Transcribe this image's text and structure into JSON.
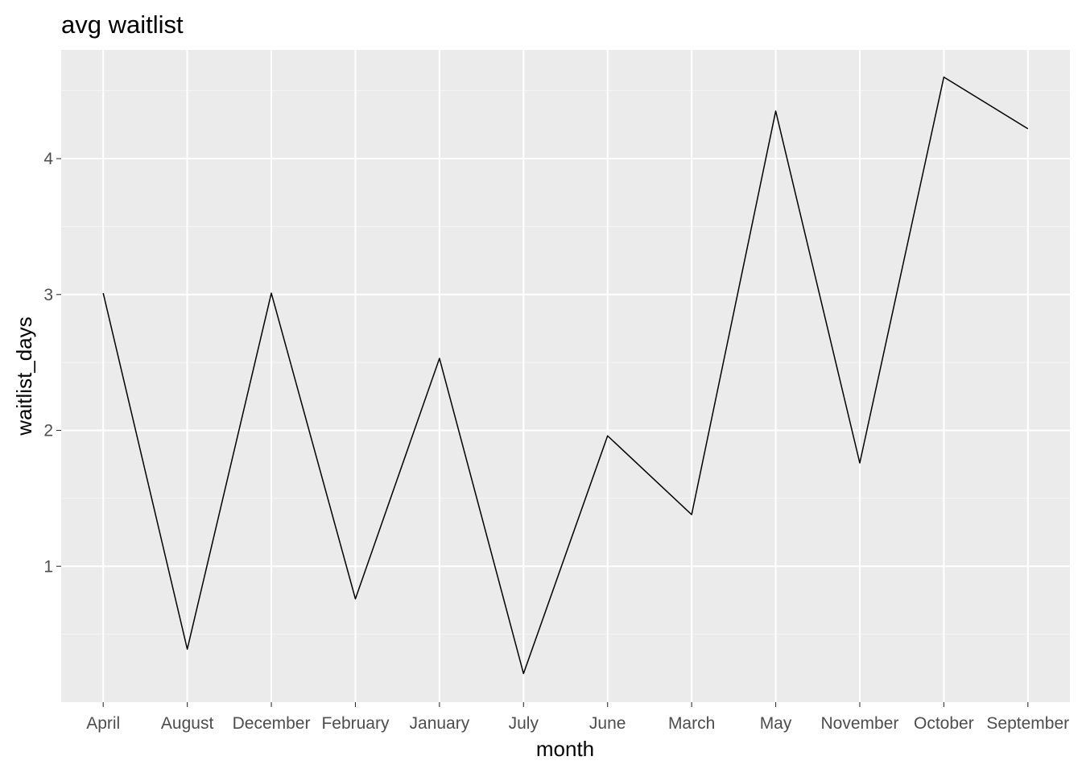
{
  "chart_data": {
    "type": "line",
    "title": "avg waitlist",
    "xlabel": "month",
    "ylabel": "waitlist_days",
    "categories": [
      "April",
      "August",
      "December",
      "February",
      "January",
      "July",
      "June",
      "March",
      "May",
      "November",
      "October",
      "September"
    ],
    "values": [
      3.01,
      0.39,
      3.01,
      0.76,
      2.53,
      0.21,
      1.96,
      1.38,
      4.35,
      1.76,
      4.6,
      4.22
    ],
    "ylim": [
      0.0,
      4.8
    ],
    "yticks": [
      "1",
      "2",
      "3",
      "4"
    ],
    "grid": true,
    "legend": "none",
    "colors": {
      "panel_background": "#ebebeb",
      "grid_major": "#ffffff",
      "grid_minor": "#f5f5f5",
      "line": "#000000",
      "tick_text": "#4d4d4d",
      "tick_mark": "#333333"
    }
  }
}
